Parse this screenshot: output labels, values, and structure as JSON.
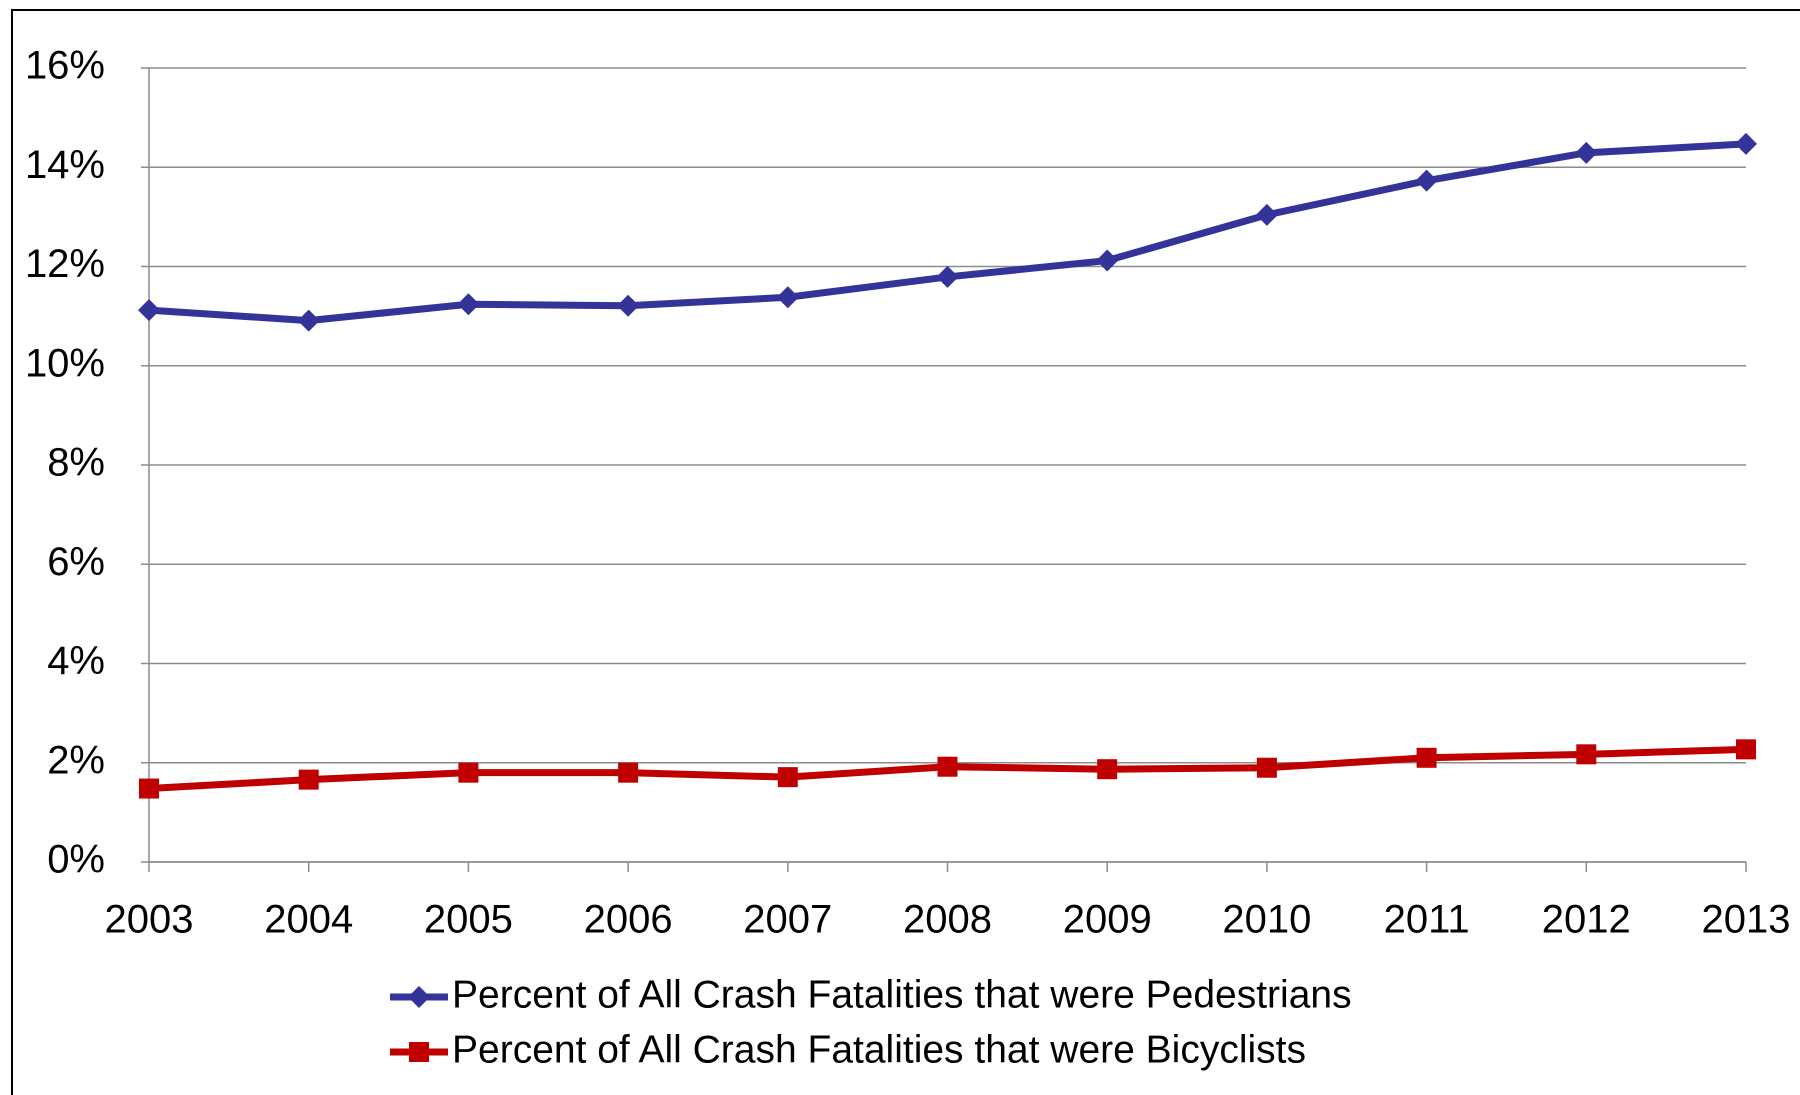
{
  "chart_data": {
    "type": "line",
    "categories": [
      "2003",
      "2004",
      "2005",
      "2006",
      "2007",
      "2008",
      "2009",
      "2010",
      "2011",
      "2012",
      "2013"
    ],
    "series": [
      {
        "name": "Percent of All Crash Fatalities that were Pedestrians",
        "color": "#33339a",
        "marker": "diamond",
        "values": [
          11.12,
          10.91,
          11.24,
          11.21,
          11.38,
          11.79,
          12.12,
          13.04,
          13.73,
          14.29,
          14.47
        ]
      },
      {
        "name": "Percent of All Crash Fatalities that were Bicyclists",
        "color": "#c00000",
        "marker": "square",
        "values": [
          1.48,
          1.66,
          1.8,
          1.8,
          1.71,
          1.92,
          1.87,
          1.9,
          2.1,
          2.17,
          2.27
        ]
      }
    ],
    "ylim": [
      0,
      16
    ],
    "yticks": [
      {
        "value": 0,
        "label": "0%"
      },
      {
        "value": 2,
        "label": "2%"
      },
      {
        "value": 4,
        "label": "4%"
      },
      {
        "value": 6,
        "label": "6%"
      },
      {
        "value": 8,
        "label": "8%"
      },
      {
        "value": 10,
        "label": "10%"
      },
      {
        "value": 12,
        "label": "12%"
      },
      {
        "value": 14,
        "label": "14%"
      },
      {
        "value": 16,
        "label": "16%"
      }
    ],
    "grid": true,
    "legend": "bottom"
  }
}
